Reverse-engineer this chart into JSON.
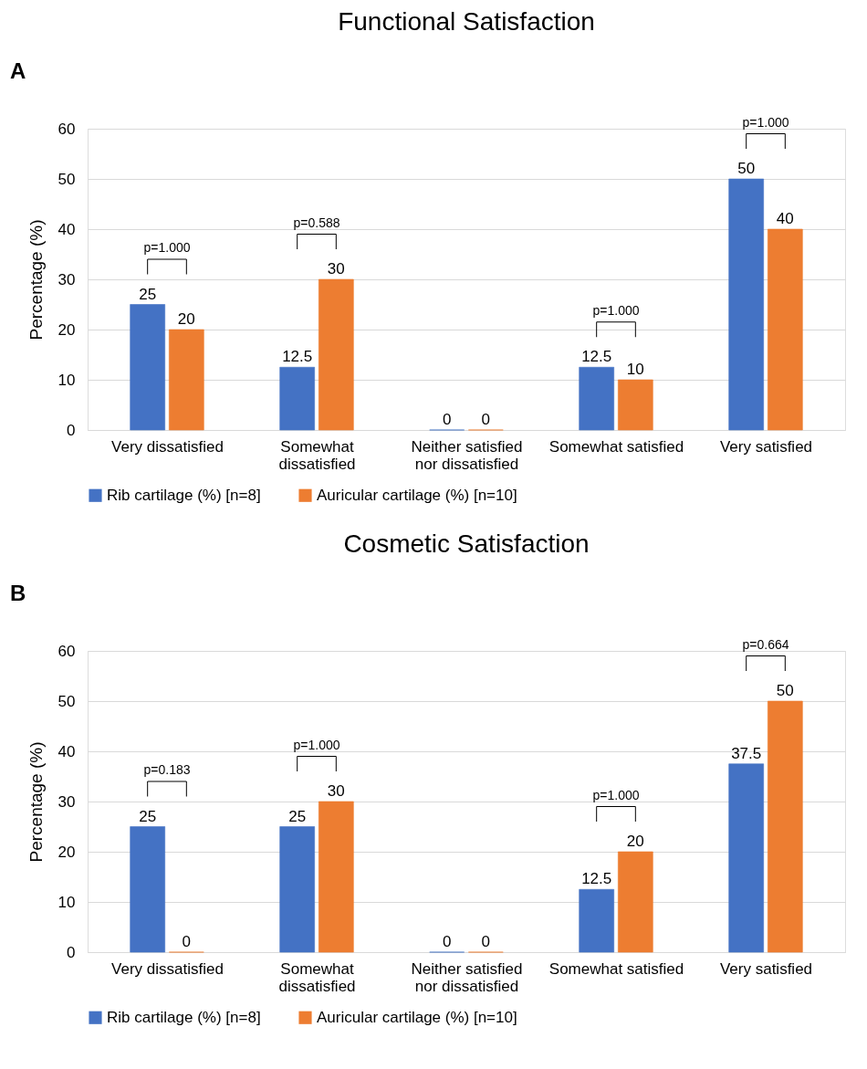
{
  "chart_data": [
    {
      "type": "bar",
      "title": "Functional Satisfaction",
      "ylabel": "Percentage (%)",
      "categories": [
        "Very dissatisfied",
        "Somewhat dissatisfied",
        "Neither satisfied nor dissatisfied",
        "Somewhat satisfied",
        "Very satisfied"
      ],
      "series": [
        {
          "name": "Rib cartilage (%) [n=8]",
          "color": "#4472c4",
          "values": [
            25,
            12.5,
            0,
            12.5,
            50
          ]
        },
        {
          "name": "Auricular cartilage (%) [n=10]",
          "color": "#ed7d31",
          "values": [
            20,
            30,
            0,
            10,
            40
          ]
        }
      ],
      "ylim": [
        0,
        60
      ],
      "yticks": [
        0,
        10,
        20,
        30,
        40,
        50,
        60
      ],
      "grid": "y",
      "legend": "bottom",
      "data_labels": true,
      "annotations": [
        "A",
        "p=1.000",
        "p=0.588",
        "p=1.000",
        "p=1.000"
      ]
    },
    {
      "type": "bar",
      "title": "Cosmetic Satisfaction",
      "ylabel": "Percentage (%)",
      "categories": [
        "Very dissatisfied",
        "Somewhat dissatisfied",
        "Neither satisfied nor dissatisfied",
        "Somewhat satisfied",
        "Very satisfied"
      ],
      "series": [
        {
          "name": "Rib cartilage (%) [n=8]",
          "color": "#4472c4",
          "values": [
            25,
            25,
            0,
            12.5,
            37.5
          ]
        },
        {
          "name": "Auricular cartilage (%) [n=10]",
          "color": "#ed7d31",
          "values": [
            0,
            30,
            0,
            20,
            50
          ]
        }
      ],
      "ylim": [
        0,
        60
      ],
      "yticks": [
        0,
        10,
        20,
        30,
        40,
        50,
        60
      ],
      "grid": "y",
      "legend": "bottom",
      "data_labels": true,
      "annotations": [
        "B",
        "p=0.183",
        "p=1.000",
        "p=1.000",
        "p=0.664"
      ]
    }
  ]
}
